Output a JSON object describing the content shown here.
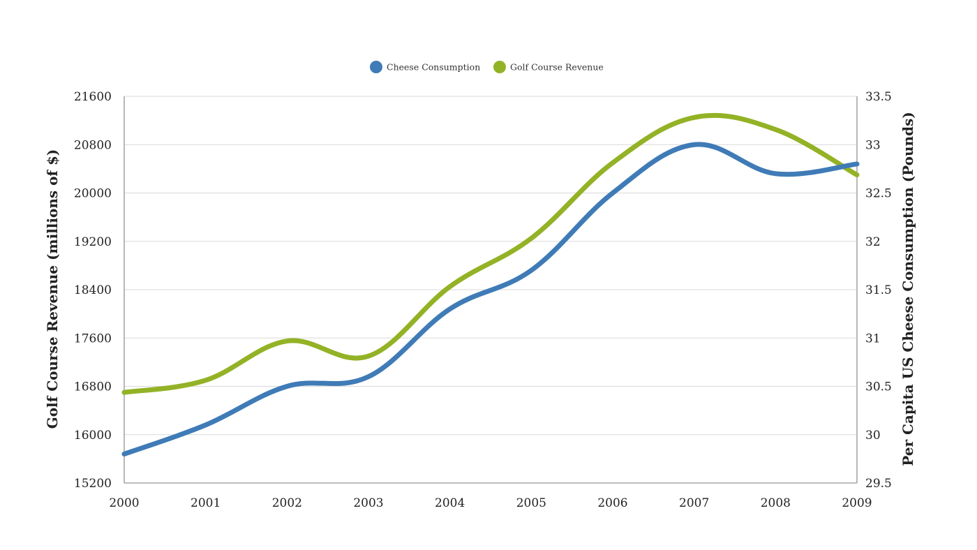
{
  "chart_data": {
    "type": "line",
    "x": [
      2000,
      2001,
      2002,
      2003,
      2004,
      2005,
      2006,
      2007,
      2008,
      2009
    ],
    "x_tick_labels": [
      "2000",
      "2001",
      "2002",
      "2003",
      "2004",
      "2005",
      "2006",
      "2007",
      "2008",
      "2009"
    ],
    "series": [
      {
        "name": "Cheese Consumption",
        "axis": "right",
        "color": "#3f7bb6",
        "values": [
          29.8,
          30.1,
          30.5,
          30.6,
          31.3,
          31.7,
          32.5,
          33.0,
          32.7,
          32.8
        ]
      },
      {
        "name": "Golf Course Revenue",
        "axis": "left",
        "color": "#93b226",
        "values": [
          16700,
          16900,
          17550,
          17300,
          18450,
          19250,
          20500,
          21250,
          21050,
          20300
        ]
      }
    ],
    "y_left": {
      "label": "Golf Course Revenue (millions of $)",
      "ylim": [
        15200,
        21600
      ],
      "ticks": [
        "15200",
        "16000",
        "16800",
        "17600",
        "18400",
        "19200",
        "20000",
        "20800",
        "21600"
      ]
    },
    "y_right": {
      "label": "Per Capita US Cheese Consumption (Pounds)",
      "ylim": [
        29.5,
        33.5
      ],
      "ticks": [
        "29.5",
        "30",
        "30.5",
        "31",
        "31.5",
        "32",
        "32.5",
        "33",
        "33.5"
      ]
    },
    "grid": true,
    "legend_position": "top-center"
  }
}
